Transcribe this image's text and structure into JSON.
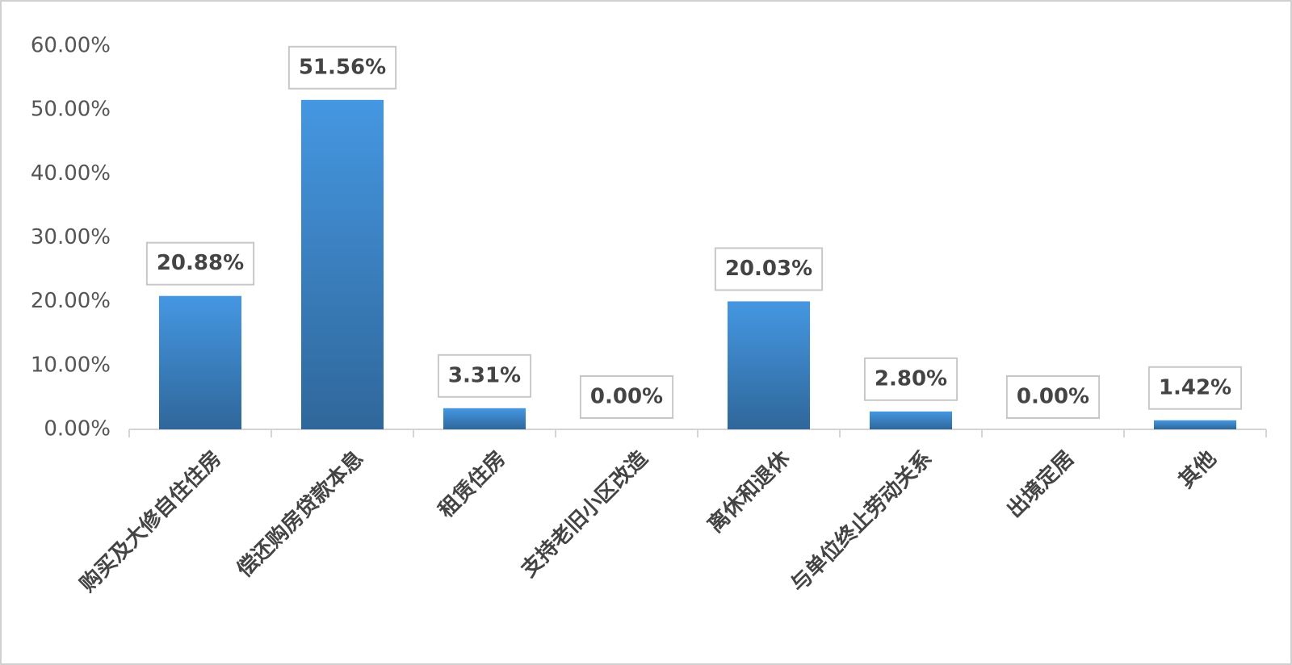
{
  "chart_data": {
    "type": "bar",
    "categories": [
      "购买及大修自住住房",
      "偿还购房贷款本息",
      "租赁住房",
      "支持老旧小区改造",
      "离休和退休",
      "与单位终止劳动关系",
      "出境定居",
      "其他"
    ],
    "values": [
      20.88,
      51.56,
      3.31,
      0,
      20.03,
      2.8,
      0,
      1.42
    ],
    "value_labels": [
      "20.88%",
      "51.56%",
      "3.31%",
      "0.00%",
      "20.03%",
      "2.80%",
      "0.00%",
      "1.42%"
    ],
    "color": "#4597e2",
    "ylim": [
      0,
      60
    ],
    "yticks": [
      {
        "value": 0,
        "label": "0.00%"
      },
      {
        "value": 10,
        "label": "10.00%"
      },
      {
        "value": 20,
        "label": "20.00%"
      },
      {
        "value": 30,
        "label": "30.00%"
      },
      {
        "value": 40,
        "label": "40.00%"
      },
      {
        "value": 50,
        "label": "50.00%"
      },
      {
        "value": 60,
        "label": "60.00%"
      }
    ],
    "grid": false
  }
}
